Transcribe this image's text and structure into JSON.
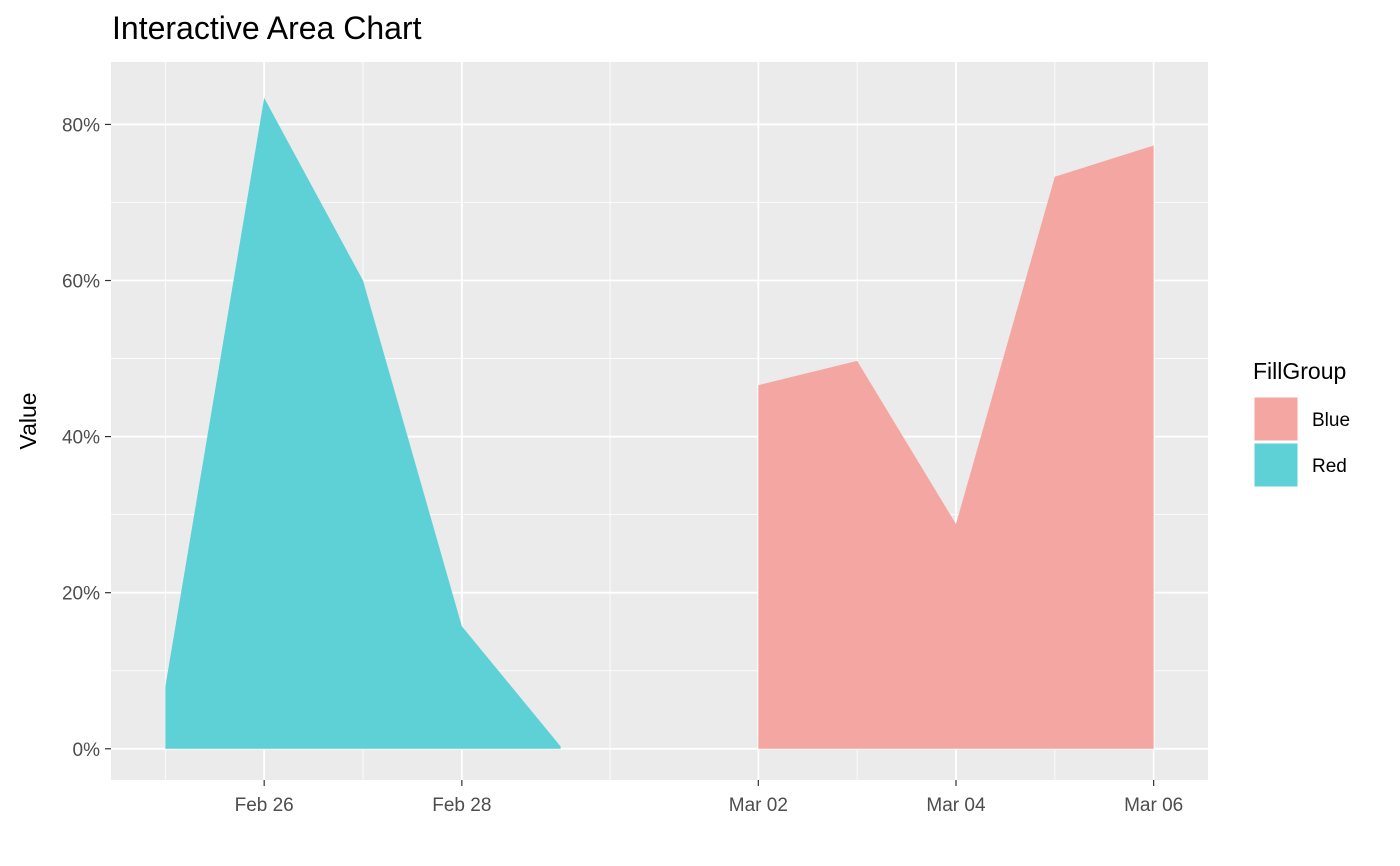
{
  "chart_data": {
    "type": "area",
    "title": "Interactive Area Chart",
    "xlabel": "",
    "ylabel": "Value",
    "x_tick_labels": [
      "Feb 26",
      "Feb 28",
      "Mar 02",
      "Mar 04",
      "Mar 06"
    ],
    "x_ticks": [
      "2024-02-26",
      "2024-02-28",
      "2024-03-02",
      "2024-03-04",
      "2024-03-06"
    ],
    "x_range": [
      "2024-02-24",
      "2024-03-07"
    ],
    "y_tick_labels": [
      "0%",
      "20%",
      "40%",
      "60%",
      "80%"
    ],
    "y_ticks": [
      0,
      0.2,
      0.4,
      0.6,
      0.8
    ],
    "ylim": [
      -0.04,
      0.88
    ],
    "grid": true,
    "legend": {
      "title": "FillGroup",
      "position": "right",
      "entries": [
        "Blue",
        "Red"
      ]
    },
    "series": [
      {
        "name": "Red",
        "color": "#5dd1d5",
        "points": [
          {
            "x": "2024-02-25",
            "y": 0.08
          },
          {
            "x": "2024-02-26",
            "y": 0.834
          },
          {
            "x": "2024-02-27",
            "y": 0.6
          },
          {
            "x": "2024-02-28",
            "y": 0.157
          },
          {
            "x": "2024-02-29",
            "y": 0.003
          }
        ]
      },
      {
        "name": "Blue",
        "color": "#f4a7a2",
        "points": [
          {
            "x": "2024-03-02",
            "y": 0.466
          },
          {
            "x": "2024-03-03",
            "y": 0.497
          },
          {
            "x": "2024-03-04",
            "y": 0.288
          },
          {
            "x": "2024-03-05",
            "y": 0.733
          },
          {
            "x": "2024-03-06",
            "y": 0.773
          }
        ]
      }
    ]
  },
  "colors": {
    "panel_background": "#ebebeb",
    "grid_major": "#ffffff",
    "tick_label": "#4d4d4d"
  }
}
